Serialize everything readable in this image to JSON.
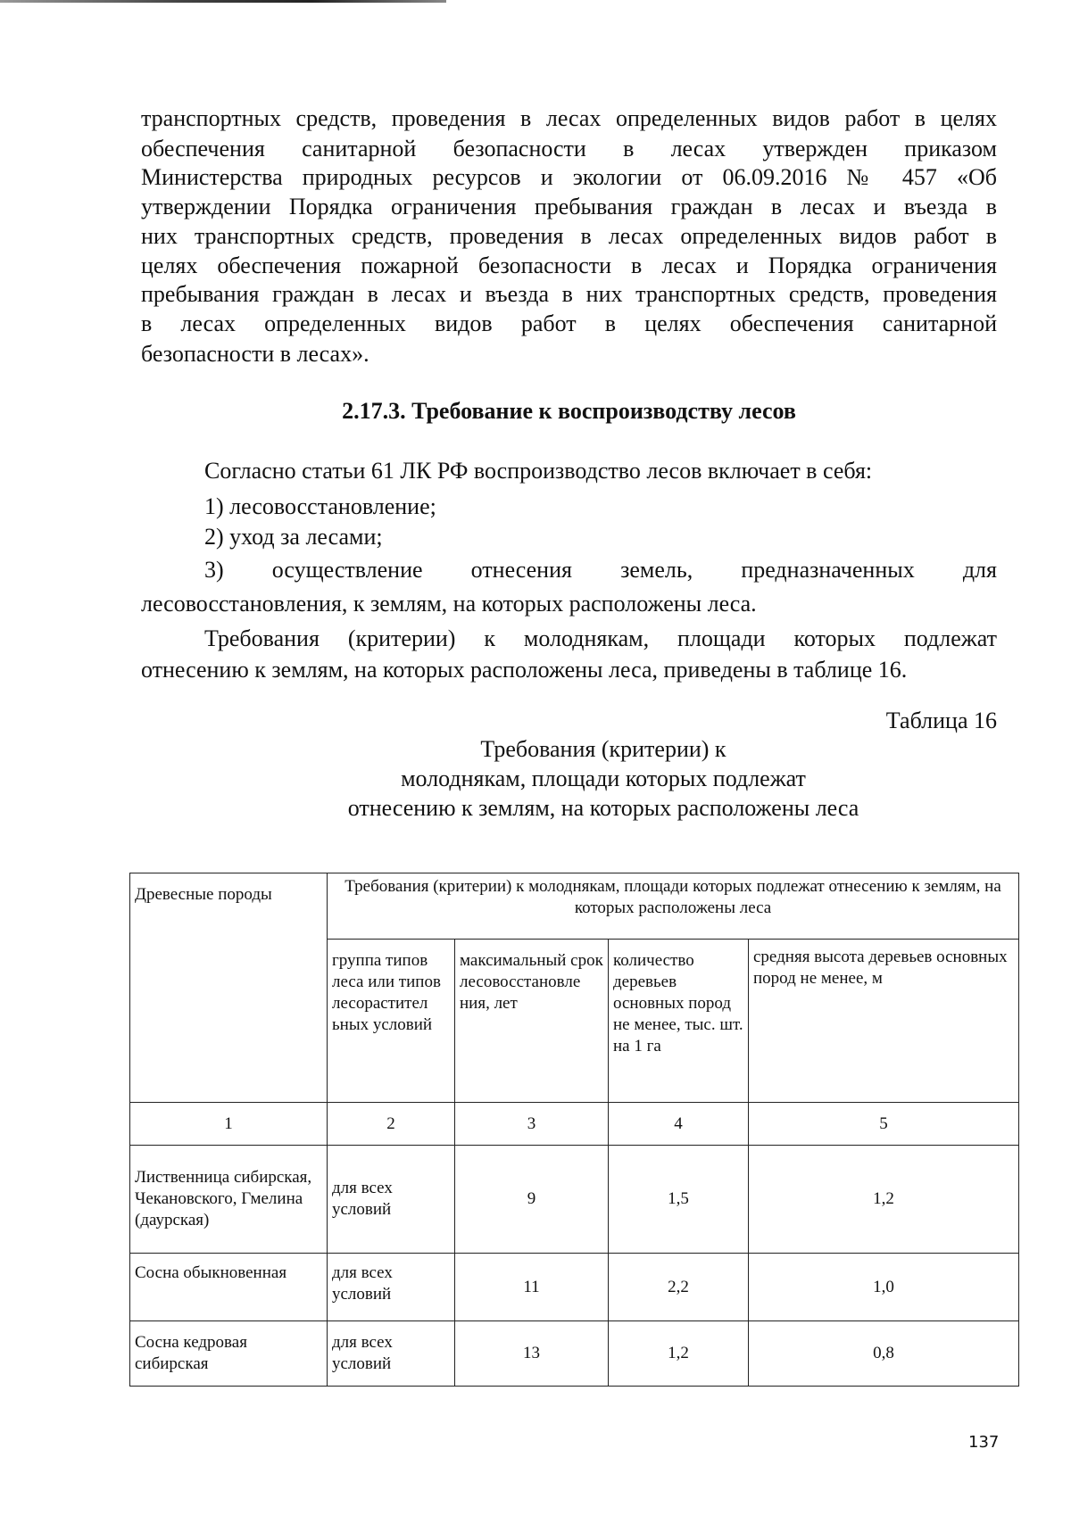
{
  "paragraph1": [
    "транспортных средств, проведения в лесах определенных видов работ в целях",
    "обеспечения санитарной безопасности в лесах утвержден приказом",
    "Министерства природных ресурсов и экологии от 06.09.2016 № 457 «Об",
    "утверждении Порядка ограничения пребывания граждан в лесах и въезда в",
    "них транспортных средств, проведения в лесах определенных видов работ в",
    "целях обеспечения пожарной безопасности в лесах и Порядка ограничения",
    "пребывания граждан в лесах и въезда в них транспортных средств, проведения",
    "в лесах определенных видов работ в целях обеспечения санитарной",
    "безопасности в лесах»."
  ],
  "heading": "2.17.3. Требование к воспроизводству лесов",
  "intro": "Согласно статьи 61 ЛК РФ воспроизводство лесов включает в себя:",
  "items": [
    "1) лесовосстановление;",
    "2) уход за лесами;",
    "3) осуществление отнесения земель, предназначенных для",
    "лесовосстановления, к землям, на которых расположены леса."
  ],
  "paragraph2": [
    "Требования (критерии) к молоднякам, площади которых подлежат",
    "отнесению к землям, на которых расположены леса, приведены в таблице 16."
  ],
  "table_label": "Таблица 16",
  "table_caption": [
    "Требования (критерии) к",
    "молоднякам, площади которых подлежат",
    "отнесению к землям, на которых расположены леса"
  ],
  "table": {
    "col1_header": "Древесные породы",
    "group_header": "Требования (критерии) к молоднякам, площади которых подлежат отнесению к землям, на которых расположены леса",
    "sub_headers": [
      "группа типов леса или типов лесорастител ьных условий",
      "максимальный срок лесовосстановле ния, лет",
      "количество деревьев основных пород не менее, тыс. шт. на 1 га",
      "средняя высота деревьев основных пород не менее, м"
    ],
    "col_numbers": [
      "1",
      "2",
      "3",
      "4",
      "5"
    ],
    "rows": [
      [
        "Лиственница сибирская, Чекановского, Гмелина (даурская)",
        "для всех условий",
        "9",
        "1,5",
        "1,2"
      ],
      [
        "Сосна обыкновенная",
        "для всех условий",
        "11",
        "2,2",
        "1,0"
      ],
      [
        "Сосна кедровая сибирская",
        "для всех условий",
        "13",
        "1,2",
        "0,8"
      ]
    ]
  },
  "page_number": "137"
}
